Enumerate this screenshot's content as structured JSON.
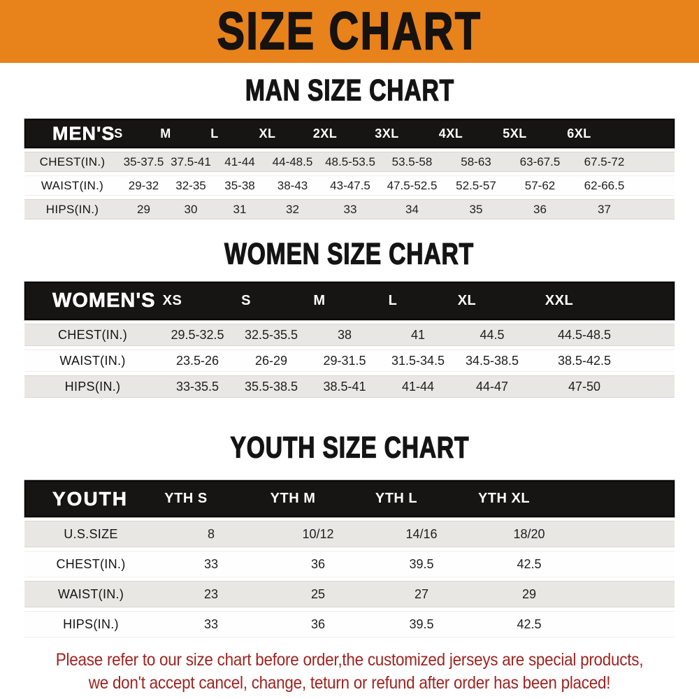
{
  "banner": {
    "title": "SIZE CHART",
    "bg_color": "#E8821B",
    "text_color": "#161210"
  },
  "sections": [
    {
      "title": "MAN SIZE CHART",
      "table": {
        "header_label": "MEN'S",
        "columns": [
          "S",
          "M",
          "L",
          "XL",
          "2XL",
          "3XL",
          "4XL",
          "5XL",
          "6XL"
        ],
        "rows": [
          {
            "label": "CHEST(IN.)",
            "values": [
              "35-37.5",
              "37.5-41",
              "41-44",
              "44-48.5",
              "48.5-53.5",
              "53.5-58",
              "58-63",
              "63-67.5",
              "67.5-72"
            ]
          },
          {
            "label": "WAIST(IN.)",
            "values": [
              "29-32",
              "32-35",
              "35-38",
              "38-43",
              "43-47.5",
              "47.5-52.5",
              "52.5-57",
              "57-62",
              "62-66.5"
            ]
          },
          {
            "label": "HIPS(IN.)",
            "values": [
              "29",
              "30",
              "31",
              "32",
              "33",
              "34",
              "35",
              "36",
              "37"
            ]
          }
        ]
      }
    },
    {
      "title": "WOMEN SIZE CHART",
      "table": {
        "header_label": "WOMEN'S",
        "columns": [
          "XS",
          "S",
          "M",
          "L",
          "XL",
          "XXL"
        ],
        "rows": [
          {
            "label": "CHEST(IN.)",
            "values": [
              "29.5-32.5",
              "32.5-35.5",
              "38",
              "41",
              "44.5",
              "44.5-48.5"
            ]
          },
          {
            "label": "WAIST(IN.)",
            "values": [
              "23.5-26",
              "26-29",
              "29-31.5",
              "31.5-34.5",
              "34.5-38.5",
              "38.5-42.5"
            ]
          },
          {
            "label": "HIPS(IN.)",
            "values": [
              "33-35.5",
              "35.5-38.5",
              "38.5-41",
              "41-44",
              "44-47",
              "47-50"
            ]
          }
        ]
      }
    },
    {
      "title": "YOUTH SIZE CHART",
      "table": {
        "header_label": "YOUTH",
        "columns": [
          "YTH S",
          "YTH M",
          "YTH L",
          "YTH XL"
        ],
        "rows": [
          {
            "label": "U.S.SIZE",
            "values": [
              "8",
              "10/12",
              "14/16",
              "18/20"
            ]
          },
          {
            "label": "CHEST(IN.)",
            "values": [
              "33",
              "36",
              "39.5",
              "42.5"
            ]
          },
          {
            "label": "WAIST(IN.)",
            "values": [
              "23",
              "25",
              "27",
              "29"
            ]
          },
          {
            "label": "HIPS(IN.)",
            "values": [
              "33",
              "36",
              "39.5",
              "42.5"
            ]
          }
        ]
      }
    }
  ],
  "footer": {
    "line1": "Please refer to our size chart before order,the customized jerseys are special products,",
    "line2": "we don't accept cancel, change, teturn or refund after order has been placed!",
    "text_color": "#9E2420"
  }
}
